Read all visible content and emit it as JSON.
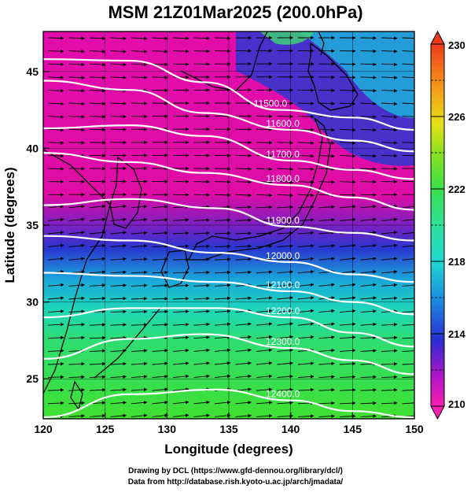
{
  "title": "MSM 21Z01Mar2025 (200.0hPa)",
  "chart_data": {
    "type": "heatmap",
    "title": "MSM 21Z01Mar2025 (200.0hPa)",
    "xlabel": "Longitude (degrees)",
    "ylabel": "Latitude  (degrees)",
    "xlim": [
      120,
      150
    ],
    "ylim": [
      22.4,
      47.6
    ],
    "x_ticks": [
      "120",
      "125",
      "130",
      "135",
      "140",
      "145",
      "150"
    ],
    "y_ticks": [
      "25",
      "30",
      "35",
      "40",
      "45"
    ],
    "colorbar": {
      "min": 210,
      "max": 230,
      "ticks": [
        "210",
        "214",
        "218",
        "222",
        "226",
        "230"
      ]
    },
    "contours": [
      {
        "value": 11500,
        "label": "11500.0",
        "lat_at_lon": [
          [
            120,
            45.8
          ],
          [
            127,
            45.7
          ],
          [
            133,
            44.3
          ],
          [
            139,
            42.5
          ],
          [
            145,
            42.0
          ],
          [
            150,
            41.2
          ]
        ]
      },
      {
        "value": 11600,
        "label": "11600.0",
        "lat_at_lon": [
          [
            120,
            44.4
          ],
          [
            127,
            43.8
          ],
          [
            133,
            42.3
          ],
          [
            140,
            41.2
          ],
          [
            145,
            40.5
          ],
          [
            150,
            39.8
          ]
        ]
      },
      {
        "value": 11700,
        "label": "11700.0",
        "lat_at_lon": [
          [
            120,
            41.3
          ],
          [
            127,
            41.5
          ],
          [
            133,
            40.8
          ],
          [
            140,
            39.2
          ],
          [
            145,
            38.6
          ],
          [
            150,
            38.0
          ]
        ]
      },
      {
        "value": 11800,
        "label": "11800.0",
        "lat_at_lon": [
          [
            120,
            39.7
          ],
          [
            127,
            39.1
          ],
          [
            133,
            38.4
          ],
          [
            140,
            37.6
          ],
          [
            145,
            36.8
          ],
          [
            150,
            36.0
          ]
        ]
      },
      {
        "value": 11900,
        "label": "11900.0",
        "lat_at_lon": [
          [
            120,
            36.3
          ],
          [
            127,
            36.7
          ],
          [
            134,
            36.1
          ],
          [
            140,
            34.9
          ],
          [
            145,
            34.5
          ],
          [
            150,
            34.0
          ]
        ]
      },
      {
        "value": 12000,
        "label": "12000.0",
        "lat_at_lon": [
          [
            120,
            34.3
          ],
          [
            127,
            34.0
          ],
          [
            134,
            33.2
          ],
          [
            140,
            32.6
          ],
          [
            145,
            31.8
          ],
          [
            150,
            31.3
          ]
        ]
      },
      {
        "value": 12100,
        "label": "12100.0",
        "lat_at_lon": [
          [
            120,
            31.9
          ],
          [
            127,
            31.7
          ],
          [
            134,
            31.3
          ],
          [
            140,
            30.7
          ],
          [
            145,
            30.0
          ],
          [
            150,
            29.2
          ]
        ]
      },
      {
        "value": 12200,
        "label": "12200.0",
        "lat_at_lon": [
          [
            120,
            29.0
          ],
          [
            127,
            29.6
          ],
          [
            134,
            29.6
          ],
          [
            140,
            29.0
          ],
          [
            145,
            28.0
          ],
          [
            150,
            27.1
          ]
        ]
      },
      {
        "value": 12300,
        "label": "12300.0",
        "lat_at_lon": [
          [
            120,
            26.3
          ],
          [
            127,
            27.6
          ],
          [
            133,
            27.9
          ],
          [
            140,
            27.0
          ],
          [
            145,
            26.2
          ],
          [
            150,
            25.3
          ]
        ]
      },
      {
        "value": 12400,
        "label": "12400.0",
        "lat_at_lon": [
          [
            120,
            22.5
          ],
          [
            127,
            24.0
          ],
          [
            134,
            24.3
          ],
          [
            140,
            23.6
          ],
          [
            145,
            22.9
          ],
          [
            150,
            22.5
          ]
        ]
      }
    ]
  },
  "credits": {
    "line1": "Drawing by DCL (https://www.gfd-dennou.org/library/dcl/)",
    "line2": "Data from http://database.rish.kyoto-u.ac.jp/arch/jmadata/"
  },
  "colors": {
    "cold_low": "#e60aa6",
    "mid_blue": "#2a32cc",
    "cyan": "#1ed4cc",
    "green": "#3ce03c",
    "contour": "#ffffff",
    "land_outline": "#000000"
  }
}
